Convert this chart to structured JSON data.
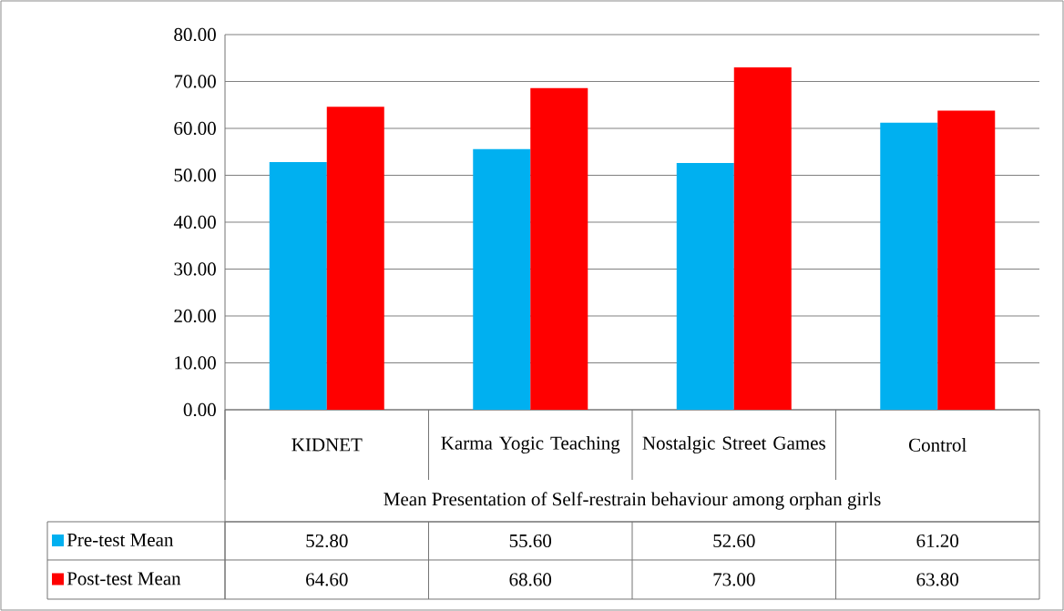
{
  "chart_data": {
    "type": "bar",
    "xlabel": "Mean Presentation of Self-restrain behaviour among orphan girls",
    "categories": [
      "KIDNET",
      "Karma Yogic Teaching",
      "Nostalgic Street Games",
      "Control"
    ],
    "series": [
      {
        "name": "Pre-test Mean",
        "color": "#00b0f0",
        "values": [
          52.8,
          55.6,
          52.6,
          61.2
        ],
        "value_labels": [
          "52.80",
          "55.60",
          "52.60",
          "61.20"
        ]
      },
      {
        "name": "Post-test Mean",
        "color": "#ff0000",
        "values": [
          64.6,
          68.6,
          73.0,
          63.8
        ],
        "value_labels": [
          "64.60",
          "68.60",
          "73.00",
          "63.80"
        ]
      }
    ],
    "ylim": [
      0,
      80
    ],
    "yticks": [
      {
        "value": 0,
        "label": "0.00"
      },
      {
        "value": 10,
        "label": "10.00"
      },
      {
        "value": 20,
        "label": "20.00"
      },
      {
        "value": 30,
        "label": "30.00"
      },
      {
        "value": 40,
        "label": "40.00"
      },
      {
        "value": 50,
        "label": "50.00"
      },
      {
        "value": 60,
        "label": "60.00"
      },
      {
        "value": 70,
        "label": "70.00"
      },
      {
        "value": 80,
        "label": "80.00"
      }
    ],
    "grid": "y",
    "legend": "bottom"
  }
}
